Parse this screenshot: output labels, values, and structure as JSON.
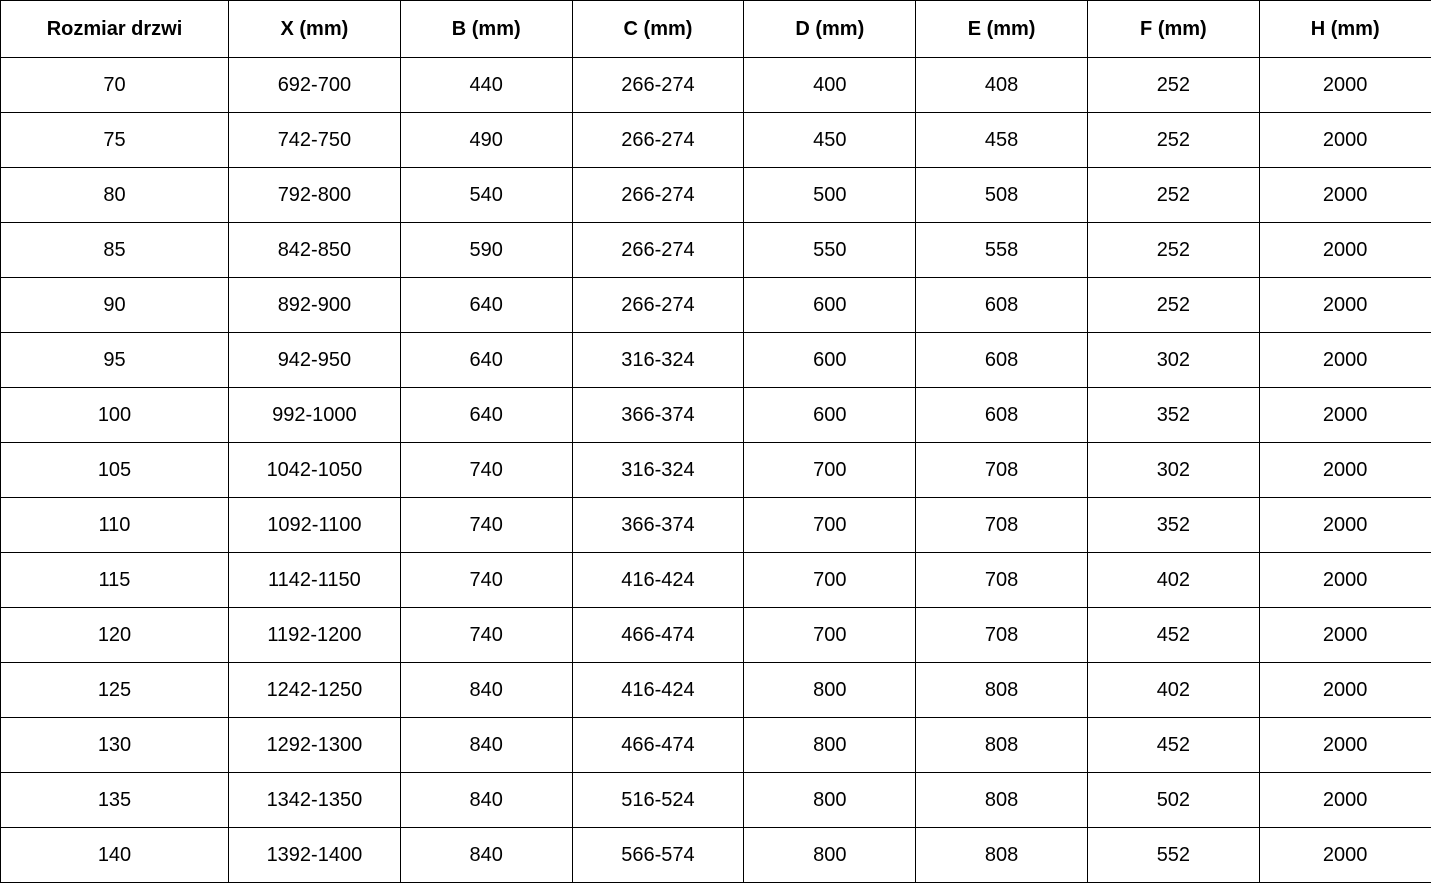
{
  "chart_data": {
    "type": "table",
    "title": "",
    "columns": [
      "Rozmiar drzwi",
      "X (mm)",
      "B (mm)",
      "C (mm)",
      "D (mm)",
      "E (mm)",
      "F (mm)",
      "H (mm)"
    ],
    "rows": [
      [
        "70",
        "692-700",
        "440",
        "266-274",
        "400",
        "408",
        "252",
        "2000"
      ],
      [
        "75",
        "742-750",
        "490",
        "266-274",
        "450",
        "458",
        "252",
        "2000"
      ],
      [
        "80",
        "792-800",
        "540",
        "266-274",
        "500",
        "508",
        "252",
        "2000"
      ],
      [
        "85",
        "842-850",
        "590",
        "266-274",
        "550",
        "558",
        "252",
        "2000"
      ],
      [
        "90",
        "892-900",
        "640",
        "266-274",
        "600",
        "608",
        "252",
        "2000"
      ],
      [
        "95",
        "942-950",
        "640",
        "316-324",
        "600",
        "608",
        "302",
        "2000"
      ],
      [
        "100",
        "992-1000",
        "640",
        "366-374",
        "600",
        "608",
        "352",
        "2000"
      ],
      [
        "105",
        "1042-1050",
        "740",
        "316-324",
        "700",
        "708",
        "302",
        "2000"
      ],
      [
        "110",
        "1092-1100",
        "740",
        "366-374",
        "700",
        "708",
        "352",
        "2000"
      ],
      [
        "115",
        "1142-1150",
        "740",
        "416-424",
        "700",
        "708",
        "402",
        "2000"
      ],
      [
        "120",
        "1192-1200",
        "740",
        "466-474",
        "700",
        "708",
        "452",
        "2000"
      ],
      [
        "125",
        "1242-1250",
        "840",
        "416-424",
        "800",
        "808",
        "402",
        "2000"
      ],
      [
        "130",
        "1292-1300",
        "840",
        "466-474",
        "800",
        "808",
        "452",
        "2000"
      ],
      [
        "135",
        "1342-1350",
        "840",
        "516-524",
        "800",
        "808",
        "502",
        "2000"
      ],
      [
        "140",
        "1392-1400",
        "840",
        "566-574",
        "800",
        "808",
        "552",
        "2000"
      ]
    ],
    "style": {
      "border_color": "#000000",
      "text_color": "#000000",
      "background_color": "#ffffff",
      "header_bold": true,
      "grid": "all"
    }
  }
}
